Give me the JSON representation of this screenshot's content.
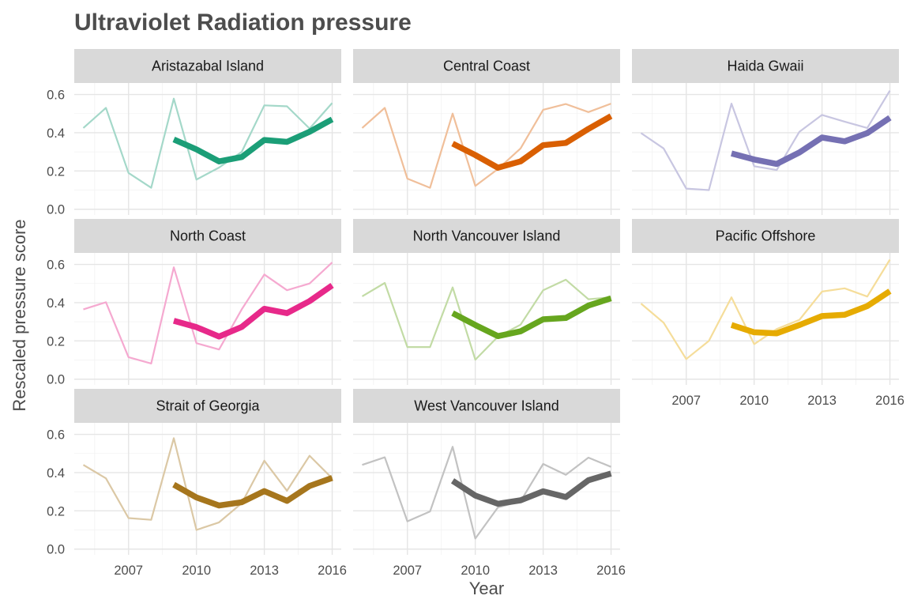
{
  "chart_data": {
    "type": "line",
    "title": "Ultraviolet Radiation pressure",
    "xlabel": "Year",
    "ylabel": "Rescaled pressure score",
    "x_ticks": [
      2007,
      2010,
      2013,
      2016
    ],
    "y_ticks": [
      0.0,
      0.2,
      0.4,
      0.6
    ],
    "y_tick_labels": [
      "0.0",
      "0.2",
      "0.4",
      "0.6"
    ],
    "xlim": [
      2004.6,
      2016.4
    ],
    "ylim": [
      -0.03,
      0.66
    ],
    "grid": true,
    "legend": "none",
    "panels": [
      {
        "name": "Aristazabal Island",
        "color": "#1b9e77",
        "raw": {
          "x": [
            2005,
            2006,
            2007,
            2008,
            2009,
            2010,
            2011,
            2012,
            2013,
            2014,
            2015,
            2016
          ],
          "y": [
            0.425,
            0.53,
            0.19,
            0.112,
            0.578,
            0.155,
            0.218,
            0.3,
            0.543,
            0.538,
            0.422,
            0.555
          ]
        },
        "smooth": {
          "x": [
            2009,
            2010,
            2011,
            2012,
            2013,
            2014,
            2015,
            2016
          ],
          "y": [
            0.365,
            0.313,
            0.25,
            0.273,
            0.362,
            0.352,
            0.405,
            0.47
          ]
        }
      },
      {
        "name": "Central Coast",
        "color": "#d95f02",
        "raw": {
          "x": [
            2005,
            2006,
            2007,
            2008,
            2009,
            2010,
            2011,
            2012,
            2013,
            2014,
            2015,
            2016
          ],
          "y": [
            0.425,
            0.53,
            0.16,
            0.112,
            0.5,
            0.122,
            0.21,
            0.318,
            0.52,
            0.55,
            0.508,
            0.552
          ]
        },
        "smooth": {
          "x": [
            2009,
            2010,
            2011,
            2012,
            2013,
            2014,
            2015,
            2016
          ],
          "y": [
            0.343,
            0.283,
            0.217,
            0.25,
            0.335,
            0.347,
            0.42,
            0.487
          ]
        }
      },
      {
        "name": "Haida Gwaii",
        "color": "#7570b3",
        "raw": {
          "x": [
            2005,
            2006,
            2007,
            2008,
            2009,
            2010,
            2011,
            2012,
            2013,
            2014,
            2015,
            2016
          ],
          "y": [
            0.398,
            0.318,
            0.108,
            0.1,
            0.552,
            0.225,
            0.205,
            0.405,
            0.493,
            0.458,
            0.425,
            0.62
          ]
        },
        "smooth": {
          "x": [
            2009,
            2010,
            2011,
            2012,
            2013,
            2014,
            2015,
            2016
          ],
          "y": [
            0.292,
            0.26,
            0.237,
            0.297,
            0.375,
            0.355,
            0.398,
            0.478
          ]
        }
      },
      {
        "name": "North Coast",
        "color": "#e7298a",
        "raw": {
          "x": [
            2005,
            2006,
            2007,
            2008,
            2009,
            2010,
            2011,
            2012,
            2013,
            2014,
            2015,
            2016
          ],
          "y": [
            0.365,
            0.402,
            0.115,
            0.082,
            0.585,
            0.188,
            0.155,
            0.365,
            0.547,
            0.465,
            0.5,
            0.61
          ]
        },
        "smooth": {
          "x": [
            2009,
            2010,
            2011,
            2012,
            2013,
            2014,
            2015,
            2016
          ],
          "y": [
            0.305,
            0.272,
            0.223,
            0.273,
            0.368,
            0.345,
            0.408,
            0.49
          ]
        }
      },
      {
        "name": "North Vancouver Island",
        "color": "#66a61e",
        "raw": {
          "x": [
            2005,
            2006,
            2007,
            2008,
            2009,
            2010,
            2011,
            2012,
            2013,
            2014,
            2015,
            2016
          ],
          "y": [
            0.433,
            0.503,
            0.168,
            0.168,
            0.48,
            0.102,
            0.222,
            0.285,
            0.465,
            0.52,
            0.418,
            0.428
          ]
        },
        "smooth": {
          "x": [
            2009,
            2010,
            2011,
            2012,
            2013,
            2014,
            2015,
            2016
          ],
          "y": [
            0.345,
            0.283,
            0.225,
            0.25,
            0.313,
            0.32,
            0.385,
            0.423
          ]
        }
      },
      {
        "name": "Pacific Offshore",
        "color": "#e6ab02",
        "raw": {
          "x": [
            2005,
            2006,
            2007,
            2008,
            2009,
            2010,
            2011,
            2012,
            2013,
            2014,
            2015,
            2016
          ],
          "y": [
            0.395,
            0.295,
            0.105,
            0.2,
            0.428,
            0.183,
            0.262,
            0.31,
            0.458,
            0.475,
            0.432,
            0.625
          ]
        },
        "smooth": {
          "x": [
            2009,
            2010,
            2011,
            2012,
            2013,
            2014,
            2015,
            2016
          ],
          "y": [
            0.283,
            0.245,
            0.24,
            0.283,
            0.33,
            0.337,
            0.382,
            0.46
          ]
        }
      },
      {
        "name": "Strait of Georgia",
        "color": "#a6761d",
        "raw": {
          "x": [
            2005,
            2006,
            2007,
            2008,
            2009,
            2010,
            2011,
            2012,
            2013,
            2014,
            2015,
            2016
          ],
          "y": [
            0.44,
            0.37,
            0.162,
            0.153,
            0.58,
            0.1,
            0.14,
            0.24,
            0.462,
            0.305,
            0.488,
            0.37
          ]
        },
        "smooth": {
          "x": [
            2009,
            2010,
            2011,
            2012,
            2013,
            2014,
            2015,
            2016
          ],
          "y": [
            0.337,
            0.27,
            0.228,
            0.245,
            0.303,
            0.252,
            0.33,
            0.372
          ]
        }
      },
      {
        "name": "West Vancouver Island",
        "color": "#666666",
        "raw": {
          "x": [
            2005,
            2006,
            2007,
            2008,
            2009,
            2010,
            2011,
            2012,
            2013,
            2014,
            2015,
            2016
          ],
          "y": [
            0.44,
            0.48,
            0.145,
            0.197,
            0.535,
            0.055,
            0.218,
            0.25,
            0.445,
            0.388,
            0.478,
            0.43
          ]
        },
        "smooth": {
          "x": [
            2009,
            2010,
            2011,
            2012,
            2013,
            2014,
            2015,
            2016
          ],
          "y": [
            0.357,
            0.28,
            0.237,
            0.255,
            0.302,
            0.272,
            0.36,
            0.395
          ]
        }
      }
    ]
  }
}
